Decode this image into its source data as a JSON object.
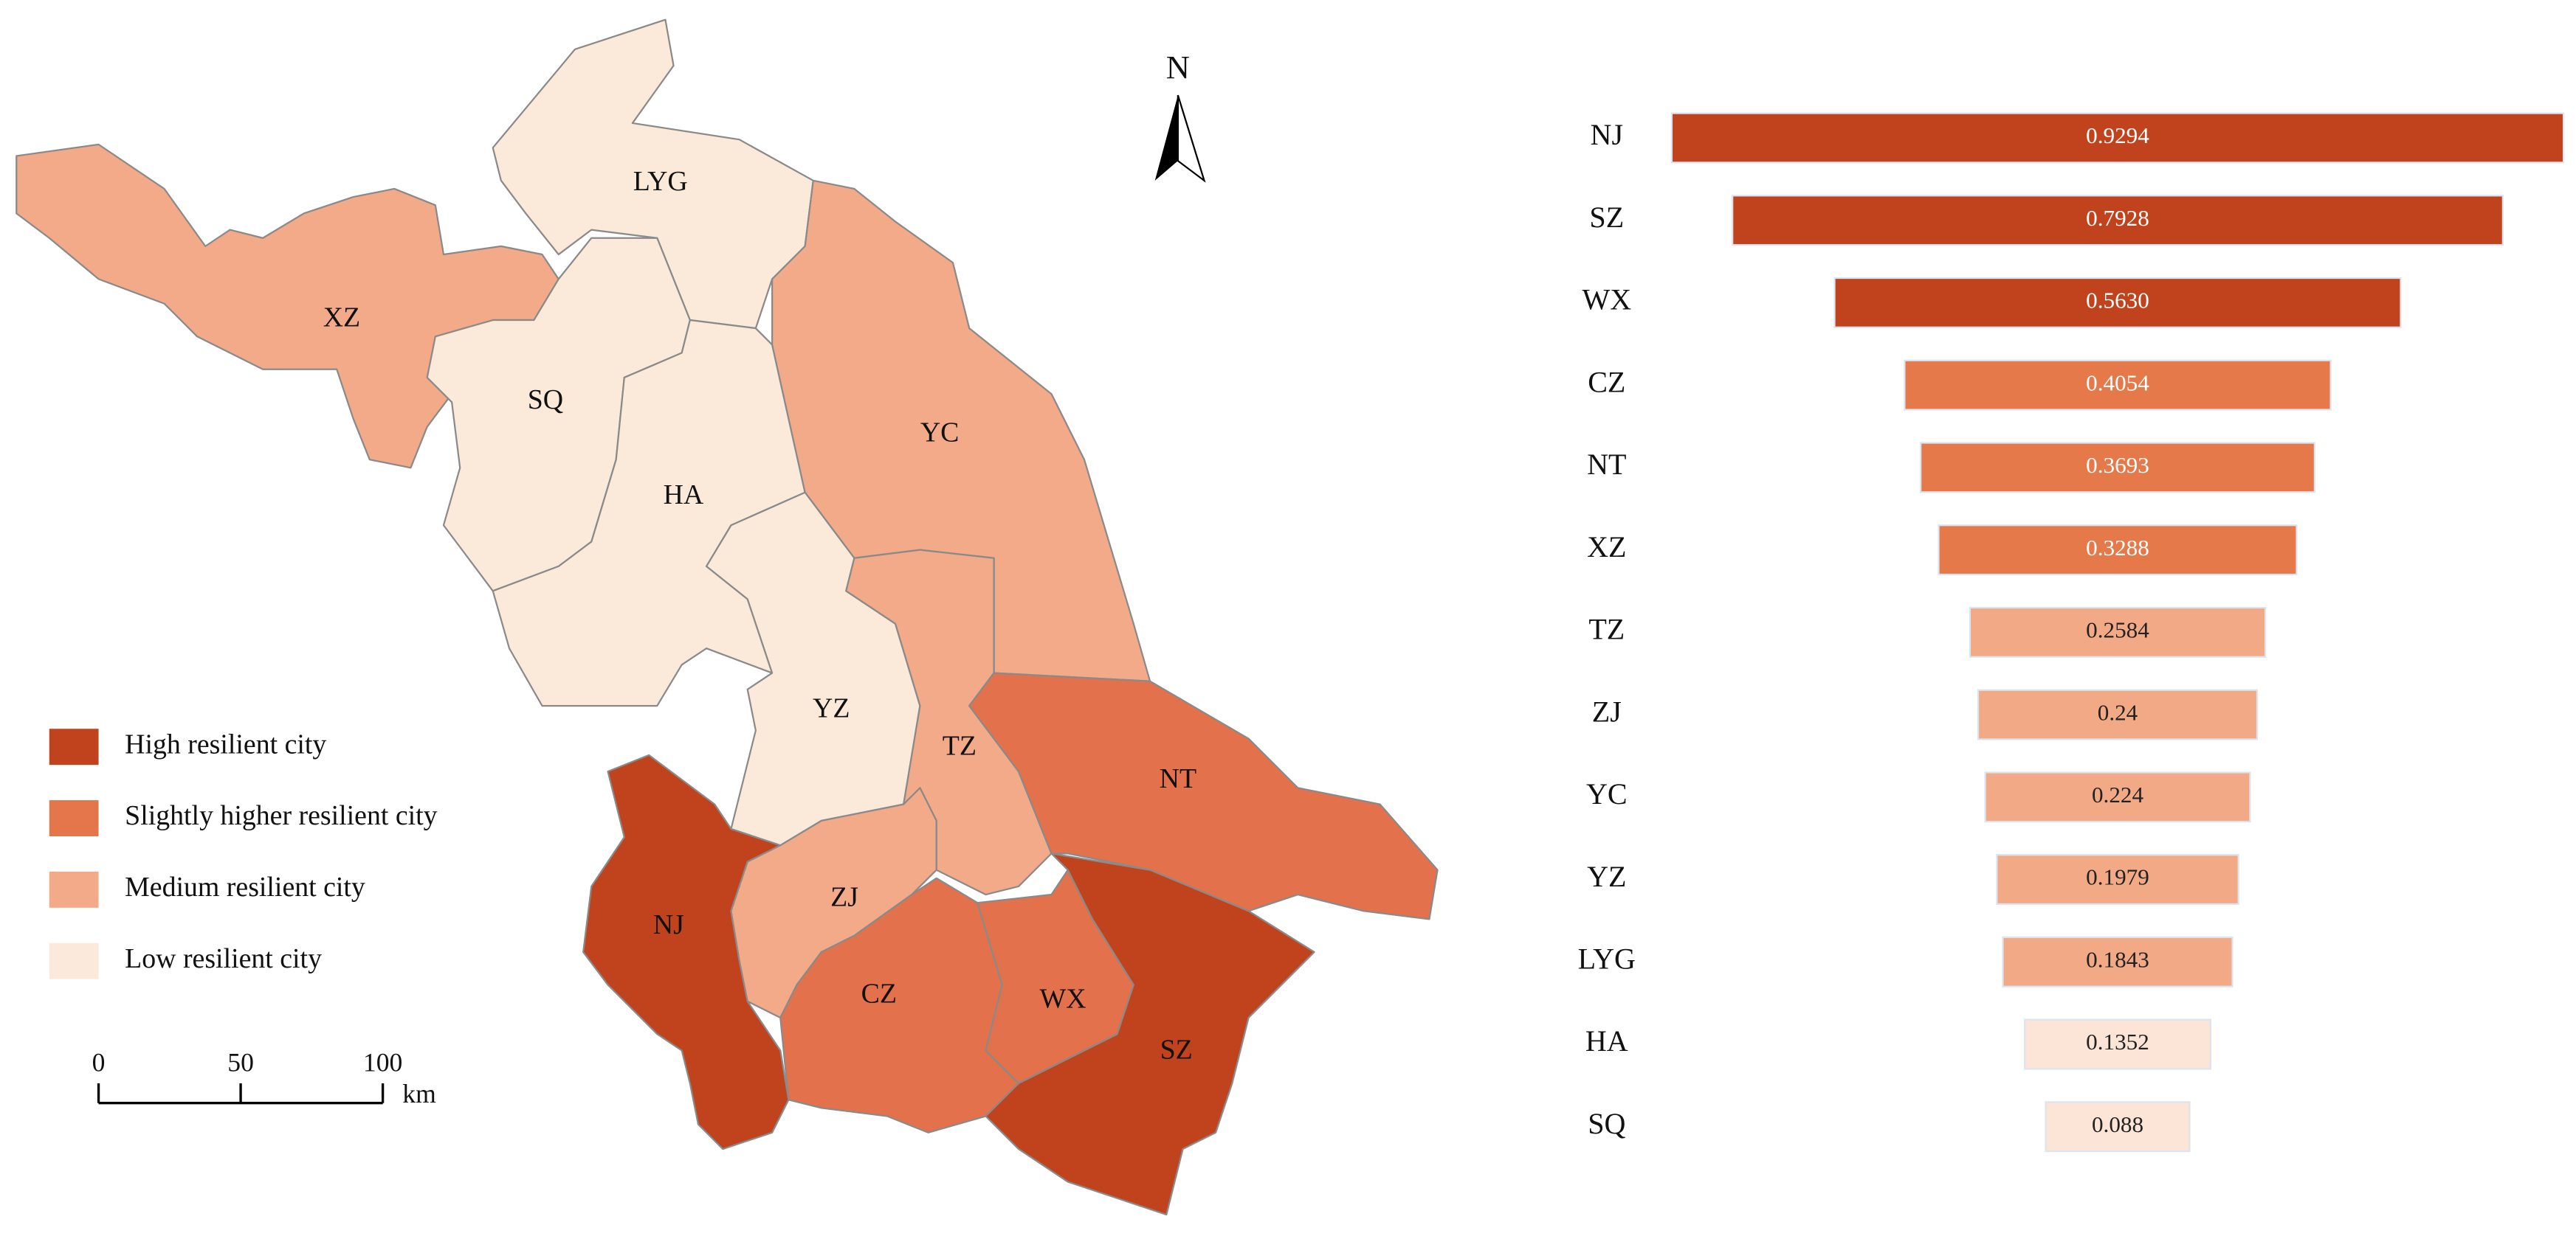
{
  "map": {
    "north": "N",
    "regions": [
      "LYG",
      "XZ",
      "SQ",
      "HA",
      "YC",
      "YZ",
      "TZ",
      "NT",
      "NJ",
      "ZJ",
      "CZ",
      "WX",
      "SZ"
    ],
    "legend": [
      {
        "label": "High resilient city",
        "color": "#c0431d"
      },
      {
        "label": "Slightly higher resilient city",
        "color": "#e5764c"
      },
      {
        "label": "Medium resilient city",
        "color": "#f2aa88"
      },
      {
        "label": "Low resilient city",
        "color": "#fbe9dc"
      }
    ],
    "scale_bar": {
      "ticks": [
        0,
        50,
        100
      ],
      "unit": "km"
    }
  },
  "chart_data": {
    "type": "bar",
    "orientation": "horizontal",
    "layout": "funnel",
    "categories": [
      "NJ",
      "SZ",
      "WX",
      "CZ",
      "NT",
      "XZ",
      "TZ",
      "ZJ",
      "YC",
      "YZ",
      "LYG",
      "HA",
      "SQ"
    ],
    "values": [
      0.9294,
      0.7928,
      0.563,
      0.4054,
      0.3693,
      0.3288,
      0.2584,
      0.24,
      0.224,
      0.1979,
      0.1843,
      0.1352,
      0.088
    ],
    "value_labels": [
      "0.9294",
      "0.7928",
      "0.5630",
      "0.4054",
      "0.3693",
      "0.3288",
      "0.2584",
      "0.24",
      "0.224",
      "0.1979",
      "0.1843",
      "0.1352",
      "0.088"
    ],
    "colors": [
      "#c0431d",
      "#c0431d",
      "#c0431d",
      "#e5794a",
      "#e5794a",
      "#e5794a",
      "#f2aa86",
      "#f2aa86",
      "#f2aa86",
      "#f2aa86",
      "#f2aa86",
      "#fce4d6",
      "#fce4d6"
    ]
  }
}
